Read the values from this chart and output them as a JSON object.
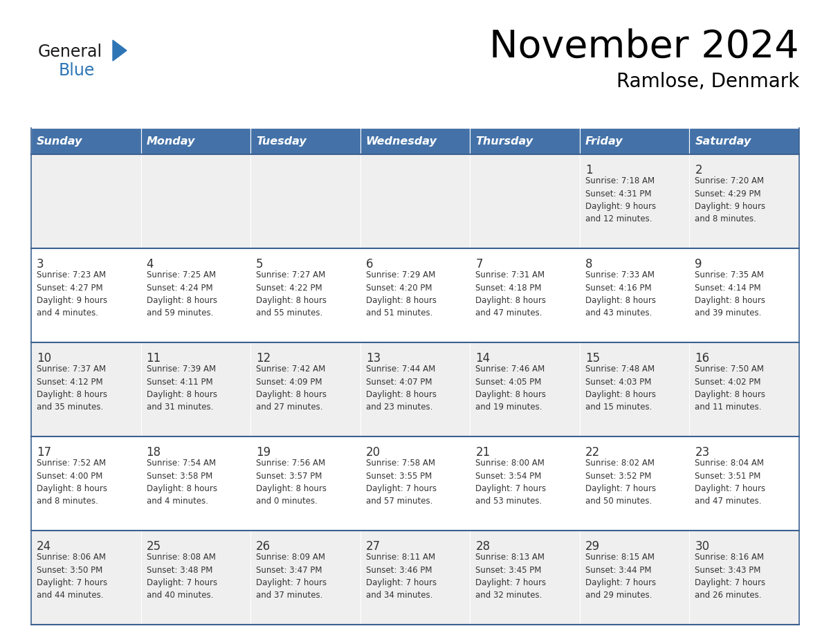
{
  "title": "November 2024",
  "subtitle": "Ramlose, Denmark",
  "header_bg": "#4472A8",
  "header_text_color": "#FFFFFF",
  "cell_bg_light": "#EFEFEF",
  "cell_bg_white": "#FFFFFF",
  "row_line_color": "#3A6090",
  "text_color": "#333333",
  "days_of_week": [
    "Sunday",
    "Monday",
    "Tuesday",
    "Wednesday",
    "Thursday",
    "Friday",
    "Saturday"
  ],
  "logo_general_color": "#1a1a1a",
  "logo_blue_color": "#2E75B6",
  "calendar": [
    [
      {
        "day": "",
        "info": ""
      },
      {
        "day": "",
        "info": ""
      },
      {
        "day": "",
        "info": ""
      },
      {
        "day": "",
        "info": ""
      },
      {
        "day": "",
        "info": ""
      },
      {
        "day": "1",
        "info": "Sunrise: 7:18 AM\nSunset: 4:31 PM\nDaylight: 9 hours\nand 12 minutes."
      },
      {
        "day": "2",
        "info": "Sunrise: 7:20 AM\nSunset: 4:29 PM\nDaylight: 9 hours\nand 8 minutes."
      }
    ],
    [
      {
        "day": "3",
        "info": "Sunrise: 7:23 AM\nSunset: 4:27 PM\nDaylight: 9 hours\nand 4 minutes."
      },
      {
        "day": "4",
        "info": "Sunrise: 7:25 AM\nSunset: 4:24 PM\nDaylight: 8 hours\nand 59 minutes."
      },
      {
        "day": "5",
        "info": "Sunrise: 7:27 AM\nSunset: 4:22 PM\nDaylight: 8 hours\nand 55 minutes."
      },
      {
        "day": "6",
        "info": "Sunrise: 7:29 AM\nSunset: 4:20 PM\nDaylight: 8 hours\nand 51 minutes."
      },
      {
        "day": "7",
        "info": "Sunrise: 7:31 AM\nSunset: 4:18 PM\nDaylight: 8 hours\nand 47 minutes."
      },
      {
        "day": "8",
        "info": "Sunrise: 7:33 AM\nSunset: 4:16 PM\nDaylight: 8 hours\nand 43 minutes."
      },
      {
        "day": "9",
        "info": "Sunrise: 7:35 AM\nSunset: 4:14 PM\nDaylight: 8 hours\nand 39 minutes."
      }
    ],
    [
      {
        "day": "10",
        "info": "Sunrise: 7:37 AM\nSunset: 4:12 PM\nDaylight: 8 hours\nand 35 minutes."
      },
      {
        "day": "11",
        "info": "Sunrise: 7:39 AM\nSunset: 4:11 PM\nDaylight: 8 hours\nand 31 minutes."
      },
      {
        "day": "12",
        "info": "Sunrise: 7:42 AM\nSunset: 4:09 PM\nDaylight: 8 hours\nand 27 minutes."
      },
      {
        "day": "13",
        "info": "Sunrise: 7:44 AM\nSunset: 4:07 PM\nDaylight: 8 hours\nand 23 minutes."
      },
      {
        "day": "14",
        "info": "Sunrise: 7:46 AM\nSunset: 4:05 PM\nDaylight: 8 hours\nand 19 minutes."
      },
      {
        "day": "15",
        "info": "Sunrise: 7:48 AM\nSunset: 4:03 PM\nDaylight: 8 hours\nand 15 minutes."
      },
      {
        "day": "16",
        "info": "Sunrise: 7:50 AM\nSunset: 4:02 PM\nDaylight: 8 hours\nand 11 minutes."
      }
    ],
    [
      {
        "day": "17",
        "info": "Sunrise: 7:52 AM\nSunset: 4:00 PM\nDaylight: 8 hours\nand 8 minutes."
      },
      {
        "day": "18",
        "info": "Sunrise: 7:54 AM\nSunset: 3:58 PM\nDaylight: 8 hours\nand 4 minutes."
      },
      {
        "day": "19",
        "info": "Sunrise: 7:56 AM\nSunset: 3:57 PM\nDaylight: 8 hours\nand 0 minutes."
      },
      {
        "day": "20",
        "info": "Sunrise: 7:58 AM\nSunset: 3:55 PM\nDaylight: 7 hours\nand 57 minutes."
      },
      {
        "day": "21",
        "info": "Sunrise: 8:00 AM\nSunset: 3:54 PM\nDaylight: 7 hours\nand 53 minutes."
      },
      {
        "day": "22",
        "info": "Sunrise: 8:02 AM\nSunset: 3:52 PM\nDaylight: 7 hours\nand 50 minutes."
      },
      {
        "day": "23",
        "info": "Sunrise: 8:04 AM\nSunset: 3:51 PM\nDaylight: 7 hours\nand 47 minutes."
      }
    ],
    [
      {
        "day": "24",
        "info": "Sunrise: 8:06 AM\nSunset: 3:50 PM\nDaylight: 7 hours\nand 44 minutes."
      },
      {
        "day": "25",
        "info": "Sunrise: 8:08 AM\nSunset: 3:48 PM\nDaylight: 7 hours\nand 40 minutes."
      },
      {
        "day": "26",
        "info": "Sunrise: 8:09 AM\nSunset: 3:47 PM\nDaylight: 7 hours\nand 37 minutes."
      },
      {
        "day": "27",
        "info": "Sunrise: 8:11 AM\nSunset: 3:46 PM\nDaylight: 7 hours\nand 34 minutes."
      },
      {
        "day": "28",
        "info": "Sunrise: 8:13 AM\nSunset: 3:45 PM\nDaylight: 7 hours\nand 32 minutes."
      },
      {
        "day": "29",
        "info": "Sunrise: 8:15 AM\nSunset: 3:44 PM\nDaylight: 7 hours\nand 29 minutes."
      },
      {
        "day": "30",
        "info": "Sunrise: 8:16 AM\nSunset: 3:43 PM\nDaylight: 7 hours\nand 26 minutes."
      }
    ]
  ]
}
